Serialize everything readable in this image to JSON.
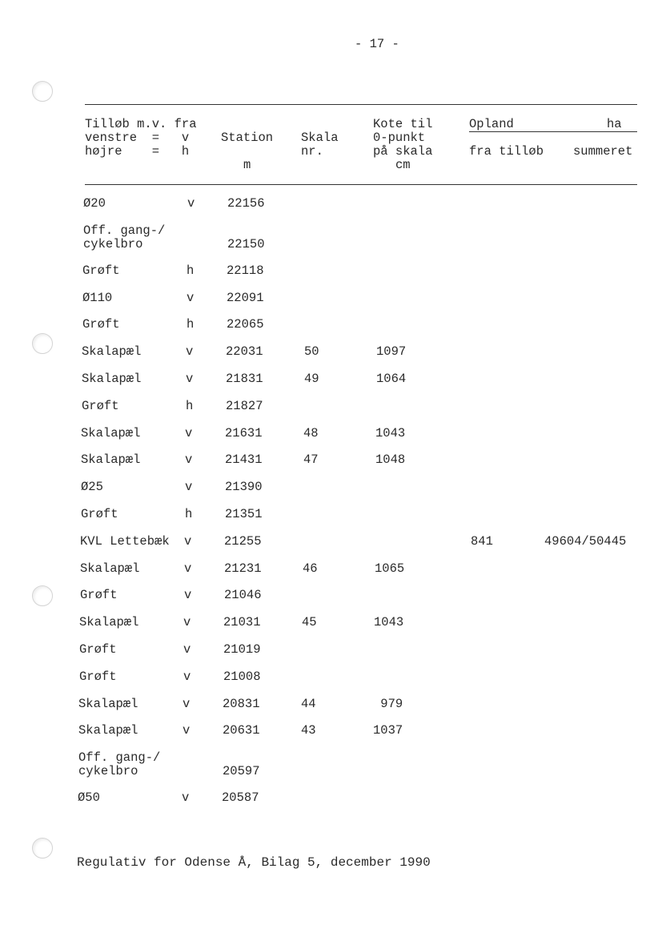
{
  "page_number": "- 17 -",
  "header": {
    "col1": [
      "Tilløb m.v. fra",
      "venstre  =   v",
      "højre    =   h"
    ],
    "station": "Station",
    "station_unit": "m",
    "skala": [
      "Skala",
      "nr."
    ],
    "kote": [
      "Kote til",
      "0-punkt",
      "på skala"
    ],
    "kote_unit": "cm",
    "opland": "Opland",
    "opland_unit": "ha",
    "fra_tillob": "fra tilløb",
    "summeret": "summeret"
  },
  "rows": [
    {
      "name": [
        "Ø20"
      ],
      "side": "v",
      "station": "22156",
      "skala": "",
      "kote": "",
      "fra": "",
      "sum": ""
    },
    {
      "name": [
        "Off. gang-/",
        "cykelbro"
      ],
      "side": "",
      "station": "22150",
      "skala": "",
      "kote": "",
      "fra": "",
      "sum": ""
    },
    {
      "name": [
        "Grøft"
      ],
      "side": "h",
      "station": "22118",
      "skala": "",
      "kote": "",
      "fra": "",
      "sum": ""
    },
    {
      "name": [
        "Ø110"
      ],
      "side": "v",
      "station": "22091",
      "skala": "",
      "kote": "",
      "fra": "",
      "sum": ""
    },
    {
      "name": [
        "Grøft"
      ],
      "side": "h",
      "station": "22065",
      "skala": "",
      "kote": "",
      "fra": "",
      "sum": ""
    },
    {
      "name": [
        "Skalapæl"
      ],
      "side": "v",
      "station": "22031",
      "skala": "50",
      "kote": "1097",
      "fra": "",
      "sum": ""
    },
    {
      "name": [
        "Skalapæl"
      ],
      "side": "v",
      "station": "21831",
      "skala": "49",
      "kote": "1064",
      "fra": "",
      "sum": ""
    },
    {
      "name": [
        "Grøft"
      ],
      "side": "h",
      "station": "21827",
      "skala": "",
      "kote": "",
      "fra": "",
      "sum": ""
    },
    {
      "name": [
        "Skalapæl"
      ],
      "side": "v",
      "station": "21631",
      "skala": "48",
      "kote": "1043",
      "fra": "",
      "sum": ""
    },
    {
      "name": [
        "Skalapæl"
      ],
      "side": "v",
      "station": "21431",
      "skala": "47",
      "kote": "1048",
      "fra": "",
      "sum": ""
    },
    {
      "name": [
        "Ø25"
      ],
      "side": "v",
      "station": "21390",
      "skala": "",
      "kote": "",
      "fra": "",
      "sum": ""
    },
    {
      "name": [
        "Grøft"
      ],
      "side": "h",
      "station": "21351",
      "skala": "",
      "kote": "",
      "fra": "",
      "sum": ""
    },
    {
      "name": [
        "KVL Lettebæk"
      ],
      "side": "v",
      "station": "21255",
      "skala": "",
      "kote": "",
      "fra": "841",
      "sum": "49604/50445"
    },
    {
      "name": [
        "Skalapæl"
      ],
      "side": "v",
      "station": "21231",
      "skala": "46",
      "kote": "1065",
      "fra": "",
      "sum": ""
    },
    {
      "name": [
        "Grøft"
      ],
      "side": "v",
      "station": "21046",
      "skala": "",
      "kote": "",
      "fra": "",
      "sum": ""
    },
    {
      "name": [
        "Skalapæl"
      ],
      "side": "v",
      "station": "21031",
      "skala": "45",
      "kote": "1043",
      "fra": "",
      "sum": ""
    },
    {
      "name": [
        "Grøft"
      ],
      "side": "v",
      "station": "21019",
      "skala": "",
      "kote": "",
      "fra": "",
      "sum": ""
    },
    {
      "name": [
        "Grøft"
      ],
      "side": "v",
      "station": "21008",
      "skala": "",
      "kote": "",
      "fra": "",
      "sum": ""
    },
    {
      "name": [
        "Skalapæl"
      ],
      "side": "v",
      "station": "20831",
      "skala": "44",
      "kote": " 979",
      "fra": "",
      "sum": ""
    },
    {
      "name": [
        "Skalapæl"
      ],
      "side": "v",
      "station": "20631",
      "skala": "43",
      "kote": "1037",
      "fra": "",
      "sum": ""
    },
    {
      "name": [
        "Off. gang-/",
        "cykelbro"
      ],
      "side": "",
      "station": "20597",
      "skala": "",
      "kote": "",
      "fra": "",
      "sum": ""
    },
    {
      "name": [
        "Ø50"
      ],
      "side": "v",
      "station": "20587",
      "skala": "",
      "kote": "",
      "fra": "",
      "sum": ""
    }
  ],
  "footer": "Regulativ for Odense Å, Bilag 5, december 1990"
}
